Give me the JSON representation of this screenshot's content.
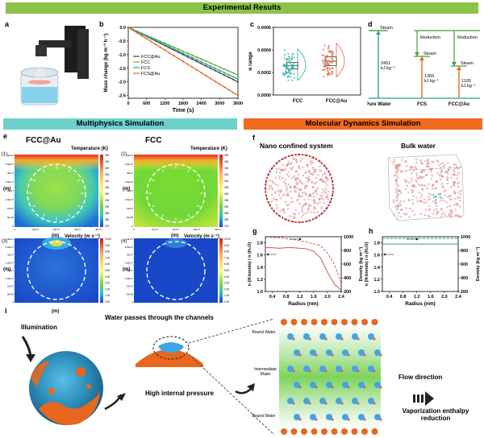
{
  "banners": {
    "experimental": "Experimental Results",
    "multiphysics": "Multiphysics Simulation",
    "molecular": "Molecular Dynamics Simulation"
  },
  "panel_labels": {
    "a": "a",
    "b": "b",
    "c": "c",
    "d": "d",
    "e": "e",
    "f": "f",
    "g": "g",
    "h": "h",
    "i": "i"
  },
  "colors": {
    "green_banner": "#8bc34a",
    "teal_banner": "#6fd0cb",
    "orange_banner": "#f26a20"
  },
  "panel_e": {
    "title_left": "FCC@Au",
    "title_right": "FCC",
    "temp_label": "Temperature (K)",
    "velocity_label": "Velocity (m s⁻¹)",
    "x_unit": "(m)",
    "y_unit": "(m)",
    "sub": [
      "(1)",
      "(2)",
      "(3)",
      "(4)"
    ],
    "temp_ticks": [
      "330",
      "325",
      "320",
      "315",
      "310",
      "305",
      "300",
      "295",
      "290",
      "285",
      "280",
      "275"
    ],
    "vel_ticks": [
      "10.00",
      "9.00",
      "8.00",
      "7.00",
      "6.00",
      "5.00",
      "4.00",
      "3.00",
      "2.00",
      "1.00",
      "0.00"
    ],
    "x_ticks": [
      "0",
      "1E-07",
      "2E-07",
      "3E-07",
      "4E-07"
    ],
    "y_ticks": [
      "4E-07",
      "3.5E-07",
      "3E-07",
      "2.5E-07",
      "2E-07",
      "1.5E-07",
      "1E-07",
      "5E-08",
      "0"
    ]
  },
  "panel_f": {
    "left": "Nano confined system",
    "right": "Bulk water"
  },
  "panel_i": {
    "illumination": "Illumination",
    "channels": "Water passes through the channels",
    "pressure": "High internal pressure",
    "bound_top": "Bound Water",
    "intermediate": "Intermediate Water",
    "bound_bottom": "Bound Water",
    "flow": "Flow direction",
    "vap": "Vaporization enthalpy reduction"
  },
  "chart_data": [
    {
      "panel": "b",
      "type": "line",
      "xlabel": "Time (s)",
      "ylabel": "Mass change (kg m⁻² h⁻¹)",
      "xlim": [
        0,
        3600
      ],
      "ylim": [
        -2.6,
        0
      ],
      "x_ticks": [
        0,
        600,
        1200,
        1800,
        2400,
        3000,
        3600
      ],
      "y_ticks": [
        0,
        -0.5,
        -1.0,
        -1.5,
        -2.0,
        -2.5
      ],
      "y_tick_labels": [
        "0.0",
        "-0.5",
        "-1.0",
        "-1.5",
        "-2.0",
        "-2.5"
      ],
      "series": [
        {
          "name": "FCC@Au",
          "color": "#444444",
          "x": [
            0,
            3600
          ],
          "y": [
            0,
            -2.0
          ]
        },
        {
          "name": "FCC",
          "color": "#66aa33",
          "x": [
            0,
            3600
          ],
          "y": [
            0,
            -1.75
          ]
        },
        {
          "name": "FCS",
          "color": "#2aa198",
          "x": [
            0,
            3600
          ],
          "y": [
            0,
            -1.9
          ]
        },
        {
          "name": "FCS@Au",
          "color": "#e8671e",
          "x": [
            0,
            3600
          ],
          "y": [
            0,
            -2.5
          ]
        }
      ]
    },
    {
      "panel": "c",
      "type": "scatter",
      "ylabel": "α range",
      "categories": [
        "FCC",
        "FCC@Au"
      ],
      "ylim": [
        0,
        0.0006
      ],
      "y_ticks": [
        0,
        0.0002,
        0.0004,
        0.0006
      ],
      "y_tick_labels": [
        "0.0000",
        "0.0002",
        "0.0004",
        "0.0006"
      ],
      "series": [
        {
          "name": "FCC",
          "color": "#2ab3a3",
          "median": 0.00026,
          "q1": 0.00023,
          "q3": 0.00029,
          "min": 0.00013,
          "max": 0.00041
        },
        {
          "name": "FCC@Au",
          "color": "#e06a4e",
          "median": 0.0003,
          "q1": 0.00026,
          "q3": 0.00034,
          "min": 0.00016,
          "max": 0.00046
        }
      ]
    },
    {
      "panel": "d",
      "type": "diagram",
      "columns": [
        "Pure Water",
        "FCS",
        "FCC@Au"
      ],
      "reductions": [
        "Reduction",
        "Reduction"
      ],
      "steam": [
        "Steam",
        "Steam",
        "Steam"
      ],
      "values": [
        2451,
        1365,
        1105
      ],
      "value_labels": [
        "2451 kJ kg⁻¹",
        "1365 kJ kg⁻¹",
        "1105 kJ kg⁻¹"
      ]
    },
    {
      "panel": "g",
      "type": "line",
      "xlabel": "Radius (nm)",
      "ylabel": "n (H-bonds) / n (H₂O)",
      "y2label": "Density (kg m⁻³)",
      "xlim": [
        0.2,
        2.4
      ],
      "ylim": [
        1.0,
        1.9
      ],
      "y2lim": [
        200,
        1000
      ],
      "x_ticks": [
        0.4,
        0.8,
        1.2,
        1.6,
        2.0,
        2.4
      ],
      "y_ticks": [
        1.0,
        1.2,
        1.4,
        1.6,
        1.8
      ],
      "y2_ticks": [
        200,
        400,
        600,
        800,
        1000
      ],
      "series": [
        {
          "name": "H-bonds",
          "color": "#d9534f",
          "dashed": false,
          "x": [
            0.2,
            0.4,
            0.6,
            0.8,
            1.0,
            1.2,
            1.4,
            1.6,
            1.8,
            2.0,
            2.2,
            2.4
          ],
          "y": [
            1.72,
            1.72,
            1.71,
            1.72,
            1.72,
            1.71,
            1.7,
            1.66,
            1.55,
            1.32,
            1.12,
            1.02
          ]
        },
        {
          "name": "Density",
          "color": "#d9534f",
          "dashed": true,
          "x": [
            0.2,
            0.6,
            1.0,
            1.4,
            1.8,
            2.0,
            2.2,
            2.4
          ],
          "y": [
            995,
            985,
            960,
            920,
            870,
            760,
            600,
            320
          ]
        }
      ]
    },
    {
      "panel": "h",
      "type": "line",
      "xlabel": "Radius (nm)",
      "ylabel": "n (H-bonds) / n (H₂O)",
      "y2label": "Density (kg m⁻³)",
      "xlim": [
        0.2,
        2.4
      ],
      "ylim": [
        1.0,
        1.9
      ],
      "y2lim": [
        200,
        1000
      ],
      "x_ticks": [
        0.4,
        0.8,
        1.2,
        1.6,
        2.0,
        2.4
      ],
      "y_ticks": [
        1.0,
        1.2,
        1.4,
        1.6,
        1.8
      ],
      "y2_ticks": [
        200,
        400,
        600,
        800,
        1000
      ],
      "series": [
        {
          "name": "H-bonds",
          "color": "#2aa198",
          "dashed": false,
          "x": [
            0.2,
            2.4
          ],
          "y": [
            1.78,
            1.78
          ]
        },
        {
          "name": "Density",
          "color": "#2aa198",
          "dashed": true,
          "x": [
            0.2,
            2.4
          ],
          "y": [
            975,
            975
          ]
        }
      ]
    }
  ]
}
